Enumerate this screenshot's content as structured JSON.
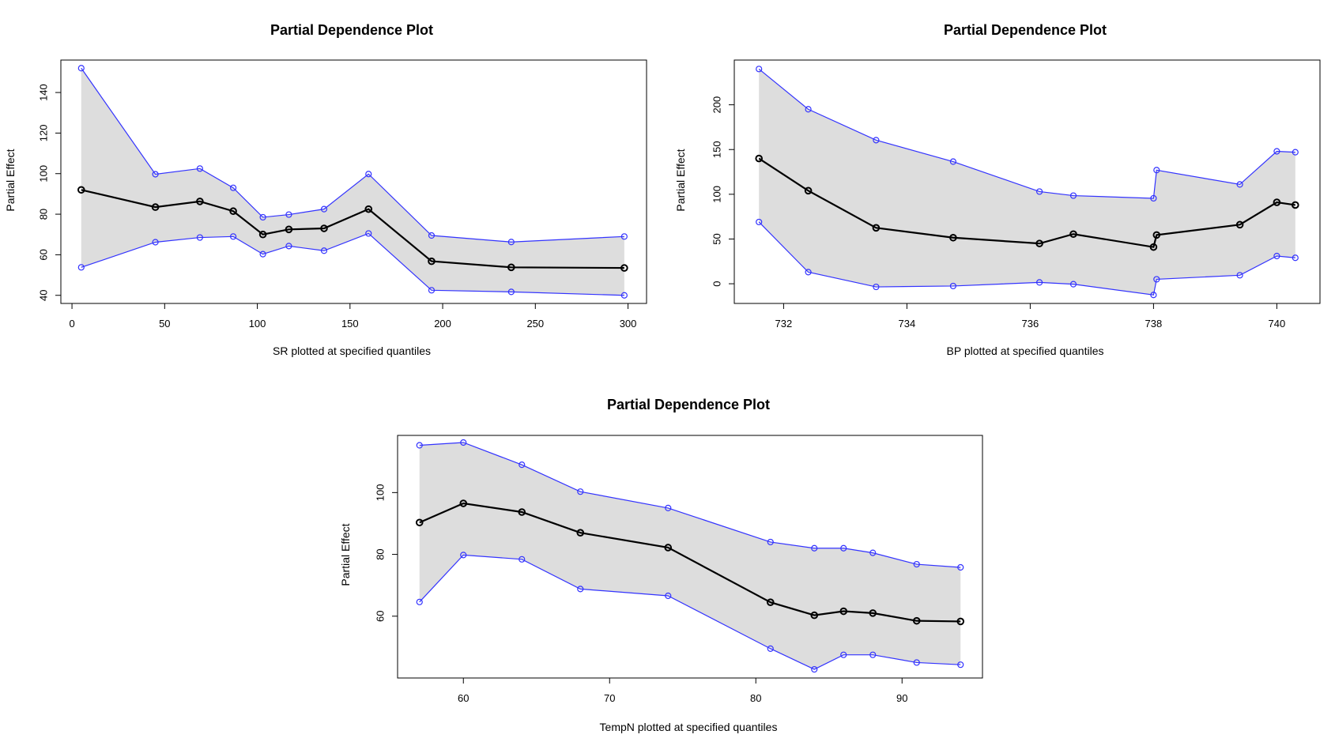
{
  "chart_data": [
    {
      "type": "line",
      "title": "Partial Dependence Plot",
      "xlabel": "SR plotted at specified quantiles",
      "ylabel": "Partial Effect",
      "xlim": [
        -6,
        310
      ],
      "ylim": [
        36,
        156
      ],
      "xticks": [
        0,
        50,
        100,
        150,
        200,
        250,
        300
      ],
      "yticks": [
        40,
        60,
        80,
        100,
        120,
        140
      ],
      "x": [
        5,
        45,
        69,
        87,
        103,
        117,
        136,
        160,
        194,
        237,
        298
      ],
      "series": [
        {
          "role": "effect",
          "values": [
            92,
            83.5,
            86.3,
            81.5,
            70,
            72.5,
            73,
            82.5,
            56.8,
            53.8,
            53.5
          ]
        },
        {
          "role": "upper",
          "values": [
            152,
            99.7,
            102.5,
            93,
            78.5,
            79.8,
            82.5,
            99.8,
            69.5,
            66.3,
            69
          ]
        },
        {
          "role": "lower",
          "values": [
            53.8,
            66.2,
            68.5,
            69,
            60.3,
            64.3,
            62,
            70.5,
            42.5,
            41.7,
            40
          ]
        }
      ],
      "grid": false,
      "legend": "none",
      "colors": {
        "effect": "#000000",
        "bounds": "#3333ff",
        "band": "#dddddd"
      }
    },
    {
      "type": "line",
      "title": "Partial Dependence Plot",
      "xlabel": "BP plotted at specified quantiles",
      "ylabel": "Partial Effect",
      "xlim": [
        731.2,
        740.7
      ],
      "ylim": [
        -22,
        250
      ],
      "xticks": [
        732,
        734,
        736,
        738,
        740
      ],
      "yticks": [
        0,
        50,
        100,
        150,
        200
      ],
      "x": [
        731.6,
        732.4,
        733.5,
        734.75,
        736.15,
        736.7,
        738.0,
        738.05,
        739.4,
        740.0,
        740.3
      ],
      "series": [
        {
          "role": "effect",
          "values": [
            140,
            104,
            62.5,
            51.5,
            45,
            55.5,
            41,
            54.5,
            66,
            91,
            88
          ]
        },
        {
          "role": "upper",
          "values": [
            240,
            195,
            160.5,
            136.5,
            103,
            98.5,
            95.5,
            127,
            111,
            148,
            147
          ]
        },
        {
          "role": "lower",
          "values": [
            69,
            13,
            -3.5,
            -2.5,
            1.5,
            -0.5,
            -12.5,
            5,
            9.5,
            31,
            29
          ]
        }
      ],
      "grid": false,
      "legend": "none",
      "colors": {
        "effect": "#000000",
        "bounds": "#3333ff",
        "band": "#dddddd"
      }
    },
    {
      "type": "line",
      "title": "Partial Dependence Plot",
      "xlabel": "TempN plotted at specified quantiles",
      "ylabel": "Partial Effect",
      "xlim": [
        55.5,
        95.5
      ],
      "ylim": [
        40,
        118.5
      ],
      "xticks": [
        60,
        70,
        80,
        90
      ],
      "yticks": [
        60,
        80,
        100
      ],
      "x": [
        57,
        60,
        64,
        68,
        74,
        81,
        84,
        86,
        88,
        91,
        94
      ],
      "series": [
        {
          "role": "effect",
          "values": [
            90.3,
            96.5,
            93.7,
            87,
            82.2,
            64.5,
            60.3,
            61.6,
            61,
            58.5,
            58.3
          ]
        },
        {
          "role": "upper",
          "values": [
            115.3,
            116.2,
            109,
            100.3,
            95,
            84,
            82,
            82,
            80.5,
            76.8,
            75.8
          ]
        },
        {
          "role": "lower",
          "values": [
            64.6,
            79.8,
            78.4,
            68.8,
            66.6,
            49.5,
            42.8,
            47.5,
            47.5,
            45,
            44.3
          ]
        }
      ],
      "grid": false,
      "legend": "none",
      "colors": {
        "effect": "#000000",
        "bounds": "#3333ff",
        "band": "#dddddd"
      }
    }
  ]
}
